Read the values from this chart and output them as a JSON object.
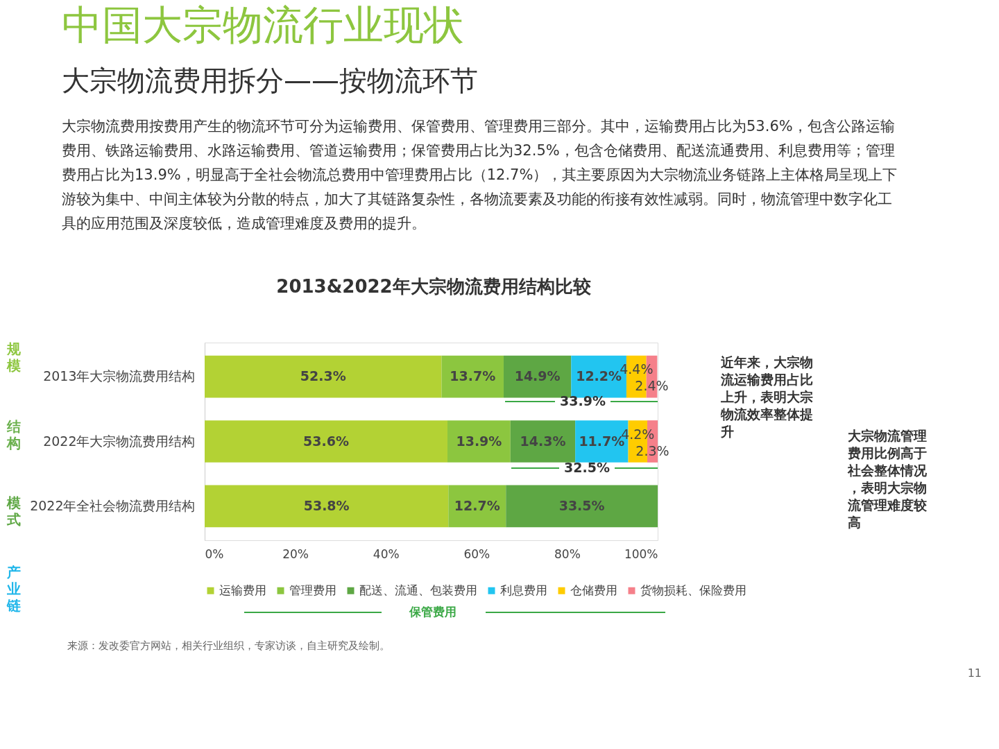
{
  "chart_data": {
    "type": "bar",
    "orientation": "horizontal",
    "stacked": true,
    "title": "2013&2022年大宗物流费用结构比较",
    "categories": [
      "2013年大宗物流费用结构",
      "2022年大宗物流费用结构",
      "2022年全社会物流费用结构"
    ],
    "series": [
      {
        "name": "运输费用",
        "color": "#b3d234",
        "values": [
          52.3,
          53.6,
          53.8
        ],
        "value_labels": [
          "52.3%",
          "53.6%",
          "53.8%"
        ]
      },
      {
        "name": "管理费用",
        "color": "#8cc63f",
        "values": [
          13.7,
          13.9,
          12.7
        ],
        "value_labels": [
          "13.7%",
          "13.9%",
          "12.7%"
        ]
      },
      {
        "name": "配送、流通、包装费用",
        "color": "#5ea744",
        "values": [
          14.9,
          14.3,
          33.5
        ],
        "value_labels": [
          "14.9%",
          "14.3%",
          "33.5%"
        ]
      },
      {
        "name": "利息费用",
        "color": "#22c5f0",
        "values": [
          12.2,
          11.7,
          null
        ],
        "value_labels": [
          "12.2%",
          "11.7%",
          null
        ]
      },
      {
        "name": "仓储费用",
        "color": "#ffcc00",
        "values": [
          4.4,
          4.2,
          null
        ],
        "value_labels": [
          "4.4%",
          "4.2%",
          null
        ]
      },
      {
        "name": "货物损耗、保险费用",
        "color": "#f5808a",
        "values": [
          2.4,
          2.3,
          null
        ],
        "value_labels": [
          "2.4%",
          "2.3%",
          null
        ]
      }
    ],
    "xlim": [
      0,
      100
    ],
    "xticks": [
      {
        "value": 0,
        "label": "0%"
      },
      {
        "value": 20,
        "label": "20%"
      },
      {
        "value": 40,
        "label": "40%"
      },
      {
        "value": 60,
        "label": "60%"
      },
      {
        "value": 80,
        "label": "80%"
      },
      {
        "value": 100,
        "label": "100%"
      }
    ],
    "grid": false,
    "legend": "bottom",
    "annotations": [
      "中国大宗物流行业现状",
      "大宗物流费用拆分——按物流环节",
      "大宗物流费用按费用产生的物流环节可分为运输费用、保管费用、管理费用三部分。其中，运输费用占比为53.6%，包含公路运输费用、铁路运输费用、水路运输费用、管道运输费用；保管费用占比为32.5%，包含仓储费用、配送流通费用、利息费用等；管理费用占比为13.9%，明显高于全社会物流总费用中管理费用占比（12.7%），其主要原因为大宗物流业务链路上主体格局呈现上下游较为集中、中间主体较为分散的特点，加大了其链路复杂性，各物流要素及功能的衔接有效性减弱。同时，物流管理中数字化工具的应用范围及深度较低，造成管理难度及费用的提升。",
      "近年来，大宗物流运输费用占比上升，表明大宗物流效率整体提升",
      "大宗物流管理费用比例高于社会整体情况，表明大宗物流管理难度较高",
      "保管费用",
      "来源：发改委官方网站，相关行业组织，专家访谈，自主研究及绘制。",
      "11",
      "规模",
      "结构",
      "模式",
      "产业链",
      "33.9%",
      "32.5%"
    ]
  }
}
